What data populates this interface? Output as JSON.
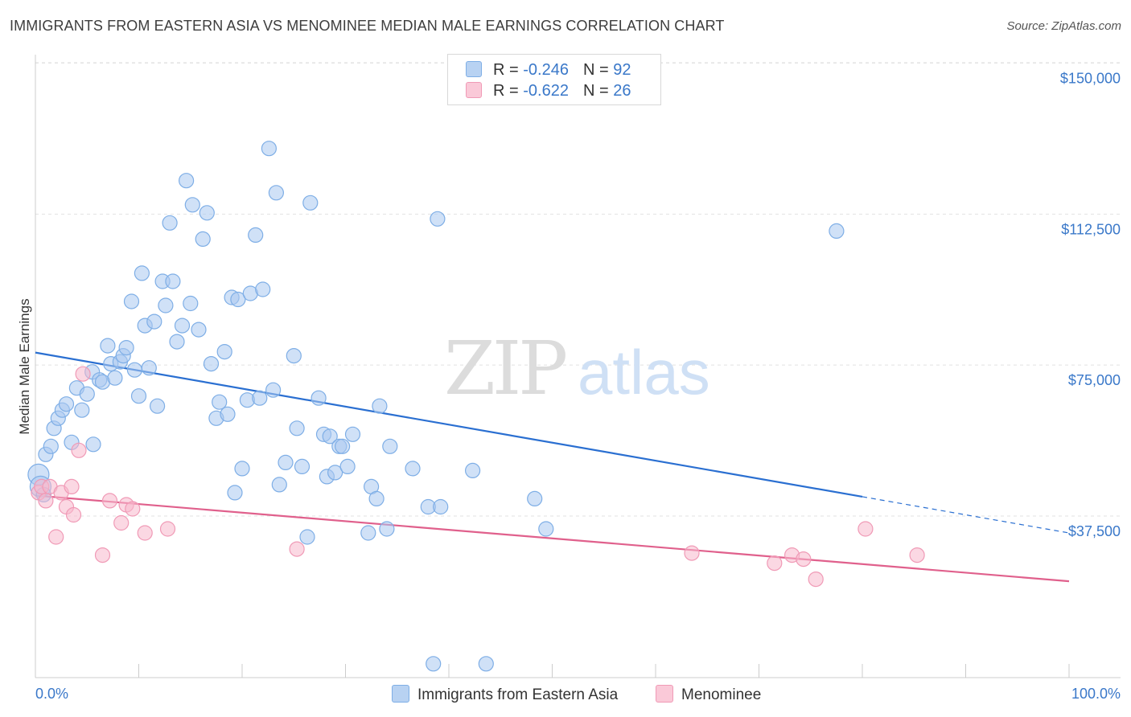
{
  "title": "IMMIGRANTS FROM EASTERN ASIA VS MENOMINEE MEDIAN MALE EARNINGS CORRELATION CHART",
  "source": "Source: ZipAtlas.com",
  "watermark": {
    "zip": "ZIP",
    "atlas": "atlas"
  },
  "legend": {
    "rows": [
      {
        "r_label": "R = ",
        "r_value": "-0.246",
        "n_label": "N = ",
        "n_value": "92",
        "color": "#a9c8f0"
      },
      {
        "r_label": "R = ",
        "r_value": "-0.622",
        "n_label": "N = ",
        "n_value": "26",
        "color": "#f7b8cc"
      }
    ]
  },
  "bottom_legend": [
    {
      "label": "Immigrants from Eastern Asia",
      "color": "#a9c8f0"
    },
    {
      "label": "Menominee",
      "color": "#f7b8cc"
    }
  ],
  "chart_data": {
    "type": "scatter",
    "ylabel": "Median Male Earnings",
    "xlabel": "",
    "x_tick_labels": [
      "0.0%",
      "100.0%"
    ],
    "xlim": [
      0,
      100
    ],
    "ylim": [
      0,
      155000
    ],
    "y_ticks": [
      37500,
      75000,
      112500,
      150000
    ],
    "y_tick_labels": [
      "$37,500",
      "$75,000",
      "$112,500",
      "$150,000"
    ],
    "grid": "horizontal dashed",
    "series": [
      {
        "name": "Immigrants from Eastern Asia",
        "color": "#7eaee6",
        "fill": "#a9c8f0",
        "trend": {
          "x0": 0,
          "y0": 80300,
          "x1": 80,
          "y1": 44500,
          "dash_to": 100,
          "dash_y": 35500,
          "color": "#2a6fd1"
        },
        "points": [
          [
            0.3,
            50000
          ],
          [
            0.5,
            47000
          ],
          [
            0.8,
            45000
          ],
          [
            1.0,
            55000
          ],
          [
            1.5,
            57000
          ],
          [
            1.8,
            61500
          ],
          [
            2.2,
            64000
          ],
          [
            2.6,
            66000
          ],
          [
            3.0,
            67500
          ],
          [
            3.5,
            58000
          ],
          [
            4.0,
            71500
          ],
          [
            4.5,
            66000
          ],
          [
            5.0,
            70000
          ],
          [
            5.5,
            75500
          ],
          [
            5.6,
            57500
          ],
          [
            6.2,
            73500
          ],
          [
            6.5,
            73000
          ],
          [
            7.0,
            82000
          ],
          [
            7.3,
            77500
          ],
          [
            7.7,
            74000
          ],
          [
            8.2,
            78000
          ],
          [
            8.5,
            79500
          ],
          [
            8.8,
            81500
          ],
          [
            9.3,
            93000
          ],
          [
            9.6,
            76000
          ],
          [
            10.0,
            69500
          ],
          [
            10.3,
            100000
          ],
          [
            10.6,
            87000
          ],
          [
            11.0,
            76500
          ],
          [
            11.5,
            88000
          ],
          [
            11.8,
            67000
          ],
          [
            12.3,
            98000
          ],
          [
            12.6,
            92000
          ],
          [
            13.0,
            112500
          ],
          [
            13.3,
            98000
          ],
          [
            13.7,
            83000
          ],
          [
            14.2,
            87000
          ],
          [
            14.6,
            123000
          ],
          [
            15.0,
            92500
          ],
          [
            15.2,
            117000
          ],
          [
            15.8,
            86000
          ],
          [
            16.2,
            108500
          ],
          [
            16.6,
            115000
          ],
          [
            17.0,
            77500
          ],
          [
            17.5,
            64000
          ],
          [
            17.8,
            68000
          ],
          [
            18.3,
            80500
          ],
          [
            18.6,
            65000
          ],
          [
            19.0,
            94000
          ],
          [
            19.3,
            45500
          ],
          [
            19.6,
            93500
          ],
          [
            20.0,
            51500
          ],
          [
            20.5,
            68500
          ],
          [
            20.8,
            95000
          ],
          [
            21.3,
            109500
          ],
          [
            21.7,
            69000
          ],
          [
            22.0,
            96000
          ],
          [
            22.6,
            131000
          ],
          [
            23.0,
            71000
          ],
          [
            23.3,
            120000
          ],
          [
            23.6,
            47500
          ],
          [
            24.2,
            53000
          ],
          [
            25.0,
            79500
          ],
          [
            25.3,
            61500
          ],
          [
            25.8,
            52000
          ],
          [
            26.3,
            34500
          ],
          [
            26.6,
            117500
          ],
          [
            27.4,
            69000
          ],
          [
            27.9,
            60000
          ],
          [
            28.2,
            49500
          ],
          [
            28.5,
            59500
          ],
          [
            29.0,
            50500
          ],
          [
            29.4,
            57000
          ],
          [
            29.7,
            57000
          ],
          [
            30.2,
            52000
          ],
          [
            30.7,
            60000
          ],
          [
            32.2,
            35500
          ],
          [
            32.5,
            47000
          ],
          [
            33.0,
            44000
          ],
          [
            34.0,
            36500
          ],
          [
            33.3,
            67000
          ],
          [
            34.3,
            57000
          ],
          [
            36.5,
            51500
          ],
          [
            38.0,
            42000
          ],
          [
            38.5,
            3000
          ],
          [
            38.9,
            113500
          ],
          [
            39.2,
            42000
          ],
          [
            42.3,
            51000
          ],
          [
            43.6,
            3000
          ],
          [
            48.3,
            44000
          ],
          [
            49.4,
            36500
          ],
          [
            77.5,
            110500
          ]
        ]
      },
      {
        "name": "Menominee",
        "color": "#f09ab6",
        "fill": "#f7b8cc",
        "trend": {
          "x0": 0,
          "y0": 44800,
          "x1": 100,
          "y1": 23500,
          "color": "#e0608c"
        },
        "points": [
          [
            0.3,
            45500
          ],
          [
            0.6,
            47000
          ],
          [
            1.0,
            43500
          ],
          [
            1.4,
            47000
          ],
          [
            2.0,
            34500
          ],
          [
            2.5,
            45500
          ],
          [
            3.0,
            42000
          ],
          [
            3.5,
            47000
          ],
          [
            3.7,
            40000
          ],
          [
            4.2,
            56000
          ],
          [
            4.6,
            75000
          ],
          [
            6.5,
            30000
          ],
          [
            7.2,
            43500
          ],
          [
            8.3,
            38000
          ],
          [
            8.8,
            42500
          ],
          [
            9.4,
            41500
          ],
          [
            10.6,
            35500
          ],
          [
            12.8,
            36500
          ],
          [
            25.3,
            31500
          ],
          [
            63.5,
            30500
          ],
          [
            71.5,
            28000
          ],
          [
            73.2,
            30000
          ],
          [
            74.3,
            29000
          ],
          [
            75.5,
            24000
          ],
          [
            80.3,
            36500
          ],
          [
            85.3,
            30000
          ]
        ]
      }
    ]
  }
}
